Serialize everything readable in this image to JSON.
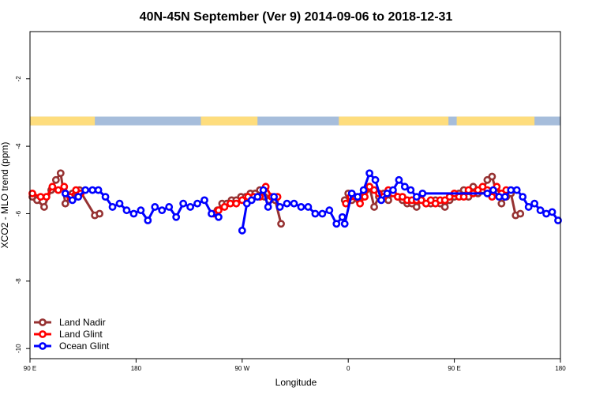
{
  "chart_data": {
    "type": "line",
    "title": "40N-45N September (Ver 9)   2014-09-06 to 2018-12-31",
    "xlabel": "Longitude",
    "ylabel": "XCO2 - MLO trend (ppm)",
    "x_ticks": [
      {
        "value": 90,
        "label": "90 E"
      },
      {
        "value": 180,
        "label": "180"
      },
      {
        "value": 270,
        "label": "90 W"
      },
      {
        "value": 360,
        "label": "0"
      },
      {
        "value": 450,
        "label": "90 E"
      },
      {
        "value": 540,
        "label": "180"
      }
    ],
    "y_ticks": [
      -2,
      -4,
      -6,
      -8,
      -10
    ],
    "xlim": [
      90,
      540
    ],
    "ylim": [
      -10.3,
      -0.6
    ],
    "grid": false,
    "legend_position": "bottom-left",
    "land_ocean_strip": {
      "y_range": [
        -3.12,
        -3.38
      ],
      "ocean_color": "#a6bddb",
      "land_color": "#fedd7d",
      "land_segments": [
        [
          90,
          145
        ],
        [
          235,
          283
        ],
        [
          352,
          445
        ],
        [
          452,
          518
        ]
      ]
    },
    "series": [
      {
        "name": "Land Nadir",
        "color": "#963232",
        "x": [
          92,
          96,
          102,
          108,
          112,
          116,
          120,
          126,
          132,
          145,
          149
        ],
        "y": [
          -5.5,
          -5.6,
          -5.8,
          -5.3,
          -5.0,
          -4.8,
          -5.7,
          -5.4,
          -5.3,
          -6.05,
          -6.0
        ],
        "x2": [
          249,
          253,
          257,
          261,
          265,
          269,
          273,
          277,
          281,
          285,
          289,
          293,
          298,
          303
        ],
        "y2": [
          -5.9,
          -5.7,
          -5.7,
          -5.6,
          -5.6,
          -5.5,
          -5.5,
          -5.4,
          -5.4,
          -5.3,
          -5.5,
          -5.6,
          -5.6,
          -6.3
        ]
      },
      {
        "name": "Land Glint",
        "color": "#ff0000",
        "x": [
          92,
          99,
          104,
          109,
          114,
          119,
          124,
          129,
          133
        ],
        "y": [
          -5.4,
          -5.5,
          -5.5,
          -5.2,
          -5.3,
          -5.2,
          -5.5,
          -5.3,
          -5.4
        ],
        "x2": [
          246,
          250,
          255,
          260,
          265,
          270,
          275,
          280,
          285,
          290,
          295,
          300
        ],
        "y2": [
          -6.0,
          -5.9,
          -5.8,
          -5.7,
          -5.7,
          -5.6,
          -5.5,
          -5.5,
          -5.5,
          -5.2,
          -5.5,
          -5.5
        ]
      },
      {
        "name": "Ocean Glint",
        "color": "#0000ff",
        "x": [
          120,
          126,
          131,
          137,
          143,
          148,
          154,
          160,
          166,
          172,
          178,
          184,
          190,
          196,
          202,
          208,
          214,
          220,
          226,
          232,
          238,
          244,
          250
        ],
        "y": [
          -5.4,
          -5.6,
          -5.5,
          -5.3,
          -5.3,
          -5.3,
          -5.5,
          -5.8,
          -5.7,
          -5.9,
          -6.0,
          -5.9,
          -6.2,
          -5.8,
          -5.9,
          -5.8,
          -6.1,
          -5.7,
          -5.8,
          -5.7,
          -5.6,
          -6.0,
          -6.1
        ],
        "x2": [
          270,
          274,
          278,
          283,
          288,
          292,
          297,
          302,
          308,
          314,
          320,
          326,
          332,
          338,
          344,
          350,
          355
        ],
        "y2": [
          -6.5,
          -5.7,
          -5.6,
          -5.5,
          -5.3,
          -5.8,
          -5.5,
          -5.8,
          -5.7,
          -5.7,
          -5.8,
          -5.8,
          -6.0,
          -6.0,
          -5.9,
          -6.3,
          -6.1
        ]
      }
    ],
    "segment_groups": {
      "land_nadir_east": {
        "x": [
          357,
          360,
          363,
          366,
          369,
          372,
          375,
          378,
          382,
          386,
          390,
          394,
          398,
          402,
          406,
          410,
          414,
          418,
          422,
          426,
          430,
          434,
          438,
          442,
          446,
          450,
          454,
          458,
          462,
          466,
          470,
          474,
          478,
          482,
          486,
          490,
          494,
          498,
          502,
          506
        ],
        "y": [
          -5.6,
          -5.4,
          -5.6,
          -5.5,
          -5.6,
          -5.5,
          -5.3,
          -5.2,
          -5.8,
          -5.5,
          -5.4,
          -5.6,
          -5.4,
          -5.5,
          -5.6,
          -5.7,
          -5.7,
          -5.8,
          -5.6,
          -5.7,
          -5.7,
          -5.6,
          -5.7,
          -5.8,
          -5.6,
          -5.5,
          -5.4,
          -5.3,
          -5.5,
          -5.2,
          -5.4,
          -5.3,
          -5.0,
          -4.9,
          -5.4,
          -5.7,
          -5.5,
          -5.4,
          -6.05,
          -6.0
        ],
        "series": 0
      },
      "land_glint_east": {
        "x": [
          358,
          362,
          366,
          370,
          374,
          378,
          382,
          386,
          390,
          394,
          398,
          402,
          406,
          410,
          414,
          418,
          422,
          426,
          430,
          434,
          438,
          442,
          446,
          450,
          454,
          458,
          462,
          466,
          470,
          474,
          478,
          482,
          486,
          490,
          494
        ],
        "y": [
          -5.7,
          -5.5,
          -5.5,
          -5.7,
          -5.5,
          -5.2,
          -5.3,
          -5.4,
          -5.5,
          -5.3,
          -5.4,
          -5.5,
          -5.5,
          -5.6,
          -5.6,
          -5.6,
          -5.6,
          -5.7,
          -5.6,
          -5.7,
          -5.6,
          -5.6,
          -5.5,
          -5.4,
          -5.5,
          -5.5,
          -5.3,
          -5.4,
          -5.3,
          -5.2,
          -5.3,
          -5.5,
          -5.2,
          -5.4,
          -5.3
        ],
        "series": 1
      },
      "ocean_glint_east": {
        "x": [
          357,
          363,
          368,
          373,
          378,
          383,
          388,
          393,
          398,
          403,
          408,
          413,
          418,
          423,
          478,
          483,
          488,
          493,
          498,
          503,
          508,
          513,
          518,
          523,
          528,
          533,
          538
        ],
        "y": [
          -6.3,
          -5.4,
          -5.5,
          -5.3,
          -4.8,
          -5.0,
          -5.6,
          -5.4,
          -5.3,
          -5.0,
          -5.2,
          -5.3,
          -5.5,
          -5.4,
          -5.4,
          -5.3,
          -5.5,
          -5.5,
          -5.3,
          -5.3,
          -5.5,
          -5.8,
          -5.7,
          -5.9,
          -6.0,
          -5.95,
          -6.2
        ],
        "series": 2
      }
    }
  }
}
